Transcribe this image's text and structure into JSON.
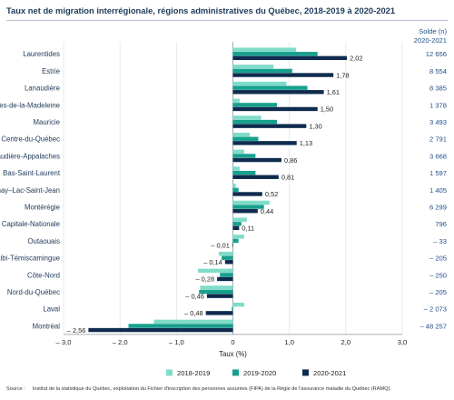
{
  "header": {
    "title": "Taux net de migration interrégionale, régions administratives du Québec, 2018-2019 à 2020-2021",
    "solde_label_line1": "Solde (n)",
    "solde_label_line2": "2020-2021"
  },
  "chart_data": {
    "type": "bar",
    "orientation": "horizontal",
    "categories": [
      "Laurentides",
      "Estrie",
      "Lanaudière",
      "Gaspésie–Îles-de-la-Madeleine",
      "Mauricie",
      "Centre-du-Québec",
      "Chaudière-Appalaches",
      "Bas-Saint-Laurent",
      "Saguenay–Lac-Saint-Jean",
      "Montérégie",
      "Capitale-Nationale",
      "Outaouais",
      "Abitibi-Témiscamingue",
      "Côte-Nord",
      "Nord-du-Québec",
      "Laval",
      "Montréal"
    ],
    "series": [
      {
        "name": "2018-2019",
        "color": "#7fdcc9",
        "values": [
          1.12,
          0.72,
          0.95,
          0.12,
          0.5,
          0.3,
          0.2,
          0.12,
          0.05,
          0.65,
          0.25,
          0.2,
          -0.25,
          -0.62,
          -0.58,
          0.2,
          -1.4
        ]
      },
      {
        "name": "2019-2020",
        "color": "#17a08e",
        "values": [
          1.5,
          1.05,
          1.32,
          0.78,
          0.78,
          0.45,
          0.4,
          0.4,
          0.1,
          0.55,
          0.15,
          0.1,
          -0.2,
          -0.23,
          -0.6,
          -0.02,
          -1.85
        ]
      },
      {
        "name": "2020-2021",
        "color": "#0f2b4d",
        "values": [
          2.02,
          1.78,
          1.61,
          1.5,
          1.3,
          1.13,
          0.86,
          0.81,
          0.52,
          0.44,
          0.11,
          -0.01,
          -0.14,
          -0.28,
          -0.46,
          -0.48,
          -2.56
        ]
      }
    ],
    "value_labels": [
      "2,02",
      "1,78",
      "1,61",
      "1,50",
      "1,30",
      "1,13",
      "0,86",
      "0,81",
      "0,52",
      "0,44",
      "0,11",
      "– 0,01",
      "– 0,14",
      "– 0,28",
      "– 0,46",
      "– 0,48",
      "– 2,56"
    ],
    "solde": [
      "12 656",
      "8 554",
      "8 385",
      "1 378",
      "3 493",
      "2 791",
      "3 668",
      "1 597",
      "1 405",
      "6 299",
      "796",
      "– 33",
      "– 205",
      "– 250",
      "– 205",
      "– 2 073",
      "– 48 257"
    ],
    "xlim": [
      -3.0,
      3.0
    ],
    "xticks": [
      -3,
      -2,
      -1,
      0,
      1,
      2,
      3
    ],
    "xtick_labels": [
      "– 3,0",
      "– 2,0",
      "– 1,0",
      "0",
      "1,0",
      "2,0",
      "3,0"
    ],
    "xlabel": "Taux (%)",
    "grid": true,
    "legend_position": "bottom"
  },
  "footer": {
    "source_label": "Source :",
    "source_text": "Institut de la statistique du Québec, exploitation du Fichier d'inscription des personnes assurées (FIPA) de la Régie de l'assurance maladie du Québec (RAMQ)."
  }
}
